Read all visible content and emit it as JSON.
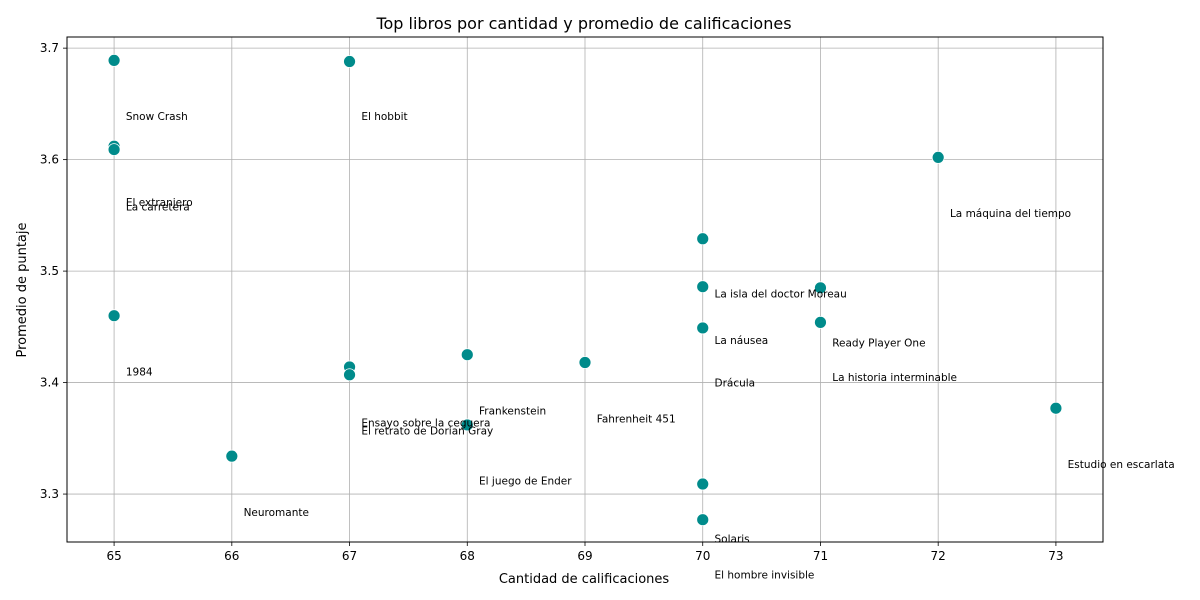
{
  "chart_data": {
    "type": "scatter",
    "title": "Top libros por cantidad y promedio de calificaciones",
    "xlabel": "Cantidad de calificaciones",
    "ylabel": "Promedio de puntaje",
    "xlim": [
      64.6,
      73.4
    ],
    "ylim": [
      3.257,
      3.71
    ],
    "xticks": [
      65,
      66,
      67,
      68,
      69,
      70,
      71,
      72,
      73
    ],
    "yticks": [
      3.3,
      3.4,
      3.5,
      3.6,
      3.7
    ],
    "grid": true,
    "marker_color": "#008b8b",
    "points": [
      {
        "x": 65,
        "y": 3.689
      },
      {
        "x": 67,
        "y": 3.688
      },
      {
        "x": 65,
        "y": 3.612
      },
      {
        "x": 65,
        "y": 3.609
      },
      {
        "x": 72,
        "y": 3.602
      },
      {
        "x": 70,
        "y": 3.529
      },
      {
        "x": 70,
        "y": 3.486
      },
      {
        "x": 71,
        "y": 3.485
      },
      {
        "x": 65,
        "y": 3.46
      },
      {
        "x": 71,
        "y": 3.454
      },
      {
        "x": 70,
        "y": 3.449
      },
      {
        "x": 68,
        "y": 3.425
      },
      {
        "x": 69,
        "y": 3.418
      },
      {
        "x": 67,
        "y": 3.414
      },
      {
        "x": 67,
        "y": 3.407
      },
      {
        "x": 73,
        "y": 3.377
      },
      {
        "x": 68,
        "y": 3.362
      },
      {
        "x": 66,
        "y": 3.334
      },
      {
        "x": 70,
        "y": 3.309
      },
      {
        "x": 70,
        "y": 3.277
      }
    ],
    "annotations": [
      {
        "text": "Snow Crash",
        "x": 65.1,
        "y": 3.639
      },
      {
        "text": "El hobbit",
        "x": 67.1,
        "y": 3.639
      },
      {
        "text": "El extranjero",
        "x": 65.1,
        "y": 3.562
      },
      {
        "text": "La carretera",
        "x": 65.1,
        "y": 3.558
      },
      {
        "text": "La máquina del tiempo",
        "x": 72.1,
        "y": 3.552
      },
      {
        "text": "La isla del doctor Moreau",
        "x": 70.1,
        "y": 3.48
      },
      {
        "text": "Ready Player One",
        "x": 71.1,
        "y": 3.436
      },
      {
        "text": "La náusea",
        "x": 70.1,
        "y": 3.438
      },
      {
        "text": "1984",
        "x": 65.1,
        "y": 3.41
      },
      {
        "text": "La historia interminable",
        "x": 71.1,
        "y": 3.405
      },
      {
        "text": "Drácula",
        "x": 70.1,
        "y": 3.4
      },
      {
        "text": "Frankenstein",
        "x": 68.1,
        "y": 3.375
      },
      {
        "text": "Fahrenheit 451",
        "x": 69.1,
        "y": 3.368
      },
      {
        "text": "Ensayo sobre la ceguera",
        "x": 67.1,
        "y": 3.364
      },
      {
        "text": "El retrato de Dorian Gray",
        "x": 67.1,
        "y": 3.357
      },
      {
        "text": "Estudio en escarlata",
        "x": 73.1,
        "y": 3.327
      },
      {
        "text": "El juego de Ender",
        "x": 68.1,
        "y": 3.312
      },
      {
        "text": "Neuromante",
        "x": 66.1,
        "y": 3.284
      },
      {
        "text": "Solaris",
        "x": 70.1,
        "y": 3.26
      },
      {
        "text": "El hombre invisible",
        "x": 70.1,
        "y": 3.228
      }
    ]
  }
}
